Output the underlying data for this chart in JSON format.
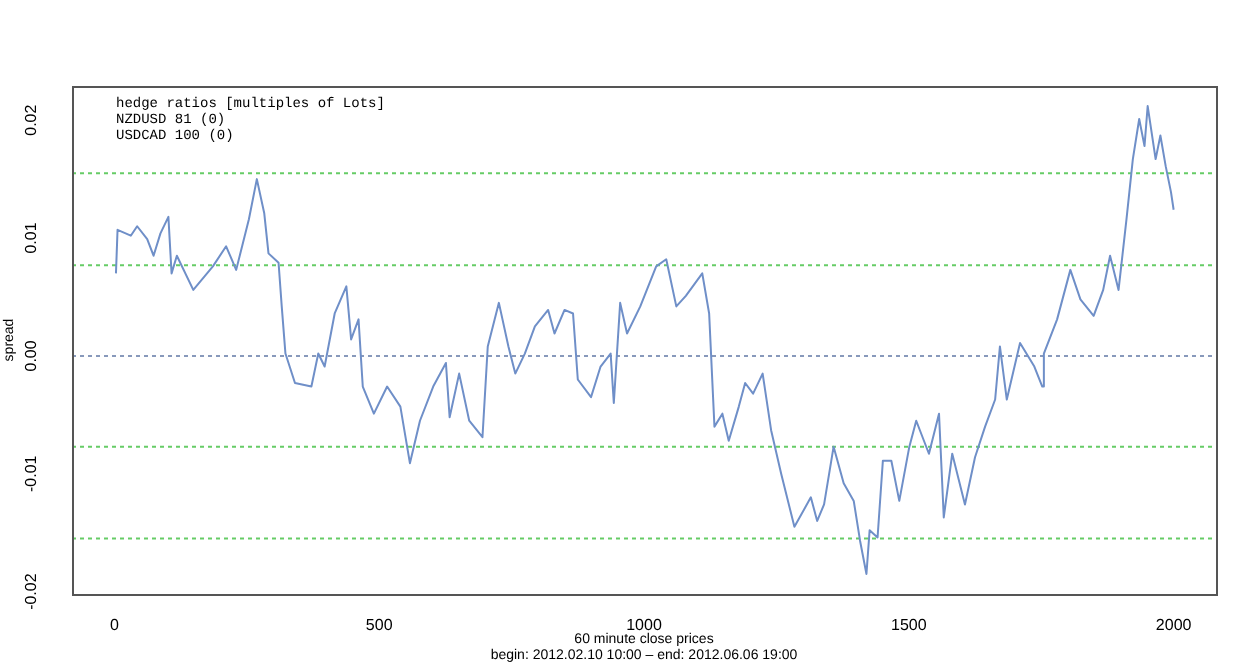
{
  "chart_data": {
    "type": "line",
    "ylabel": "spread",
    "xlabel": "60 minute close prices\nbegin: 2012.02.10 10:00 – end: 2012.06.06 19:00",
    "annotations": [
      "hedge ratios [multiples of Lots]",
      "NZDUSD 81 (0)",
      "USDCAD 100 (0)"
    ],
    "xlim": [
      -80,
      2080
    ],
    "xticks": [
      0,
      500,
      1000,
      1500,
      2000
    ],
    "ylim": [
      -0.0202,
      0.0229
    ],
    "yticks": [
      {
        "value": -0.02,
        "label": "-0.02"
      },
      {
        "value": -0.01,
        "label": "-0.01"
      },
      {
        "value": 0,
        "label": "0.00"
      },
      {
        "value": 0.01,
        "label": "0.01"
      },
      {
        "value": 0.02,
        "label": "0.02"
      }
    ],
    "grid": false,
    "legend": false,
    "marker": "none",
    "line_style": "solid",
    "ref_lines": [
      {
        "axis": "y",
        "value": 0.0155,
        "color": "#66cc66",
        "line_style": "dotted"
      },
      {
        "axis": "y",
        "value": 0.0077,
        "color": "#66cc66",
        "line_style": "dotted"
      },
      {
        "axis": "y",
        "value": 0,
        "color": "#8899bb",
        "line_style": "dotted"
      },
      {
        "axis": "y",
        "value": -0.0077,
        "color": "#66cc66",
        "line_style": "dotted"
      },
      {
        "axis": "y",
        "value": -0.0155,
        "color": "#66cc66",
        "line_style": "dotted"
      }
    ],
    "series": [
      {
        "color": "#6f8fc8",
        "x": [
          3,
          6,
          31,
          43,
          62,
          74,
          87,
          102,
          108,
          118,
          149,
          186,
          211,
          230,
          254,
          269,
          283,
          291,
          310,
          316,
          323,
          341,
          372,
          385,
          397,
          416,
          438,
          447,
          461,
          469,
          490,
          515,
          540,
          558,
          577,
          602,
          626,
          633,
          651,
          670,
          695,
          705,
          726,
          744,
          757,
          775,
          794,
          819,
          831,
          850,
          866,
          875,
          900,
          918,
          937,
          943,
          955,
          968,
          993,
          1023,
          1042,
          1061,
          1079,
          1110,
          1123,
          1133,
          1148,
          1160,
          1179,
          1191,
          1206,
          1224,
          1240,
          1259,
          1284,
          1315,
          1327,
          1340,
          1358,
          1377,
          1396,
          1408,
          1420,
          1426,
          1441,
          1451,
          1467,
          1482,
          1501,
          1514,
          1538,
          1557,
          1566,
          1582,
          1606,
          1625,
          1644,
          1663,
          1672,
          1685,
          1710,
          1737,
          1752,
          1755,
          1780,
          1805,
          1824,
          1849,
          1867,
          1880,
          1896,
          1911,
          1923,
          1935,
          1945,
          1951,
          1966,
          1975,
          1985,
          1995,
          2000
        ],
        "values": [
          0.007,
          0.0107,
          0.0102,
          0.011,
          0.0099,
          0.0085,
          0.0104,
          0.0118,
          0.007,
          0.0085,
          0.0056,
          0.0076,
          0.0093,
          0.0073,
          0.0116,
          0.015,
          0.0121,
          0.0087,
          0.0079,
          0.0042,
          0.0002,
          -0.0023,
          -0.0026,
          0.0002,
          -0.0009,
          0.0036,
          0.0059,
          0.0014,
          0.0031,
          -0.0026,
          -0.0049,
          -0.0026,
          -0.0043,
          -0.0091,
          -0.0055,
          -0.0026,
          -0.0006,
          -0.0052,
          -0.0015,
          -0.0055,
          -0.0069,
          0.0008,
          0.0045,
          0.0008,
          -0.0015,
          0.0002,
          0.0025,
          0.0039,
          0.0019,
          0.0039,
          0.0036,
          -0.002,
          -0.0035,
          -0.0009,
          0.0002,
          -0.004,
          0.0045,
          0.0019,
          0.0042,
          0.0076,
          0.0082,
          0.0042,
          0.0051,
          0.007,
          0.0036,
          -0.006,
          -0.0049,
          -0.0072,
          -0.0043,
          -0.0023,
          -0.0032,
          -0.0015,
          -0.0063,
          -0.01,
          -0.0145,
          -0.012,
          -0.014,
          -0.0126,
          -0.0077,
          -0.0108,
          -0.0123,
          -0.0157,
          -0.0185,
          -0.0148,
          -0.0154,
          -0.0089,
          -0.0089,
          -0.0123,
          -0.0077,
          -0.0055,
          -0.0083,
          -0.0049,
          -0.0137,
          -0.0083,
          -0.0126,
          -0.0086,
          -0.006,
          -0.0037,
          0.0008,
          -0.0037,
          0.0011,
          -0.0009,
          -0.0026,
          0.0002,
          0.0031,
          0.0073,
          0.0048,
          0.0034,
          0.0056,
          0.0085,
          0.0056,
          0.0116,
          0.0167,
          0.0201,
          0.0178,
          0.0212,
          0.0167,
          0.0187,
          0.0161,
          0.0139,
          0.0124
        ]
      }
    ]
  }
}
